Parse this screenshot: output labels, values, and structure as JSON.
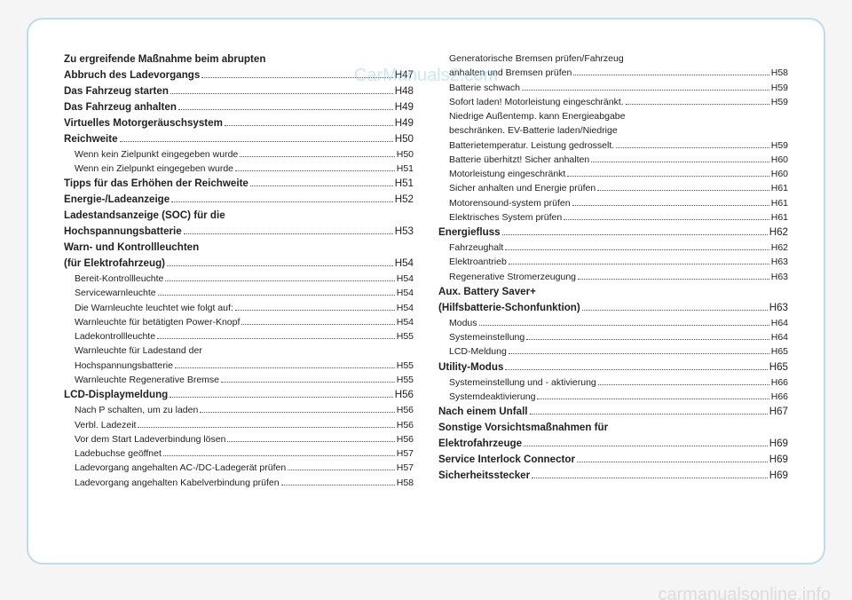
{
  "watermark_top": "CarManuals2.com",
  "watermark_bottom": "carmanualsonline.info",
  "left_column": [
    {
      "label": "Zu ergreifende Maßnahme beim abrupten",
      "page": "",
      "bold": true,
      "indent": false,
      "nodots": true
    },
    {
      "label": "Abbruch des Ladevorgangs",
      "page": "H47",
      "bold": true,
      "indent": false
    },
    {
      "label": "Das Fahrzeug starten",
      "page": "H48",
      "bold": true,
      "indent": false
    },
    {
      "label": "Das Fahrzeug anhalten",
      "page": "H49",
      "bold": true,
      "indent": false
    },
    {
      "label": "Virtuelles Motorgeräuschsystem",
      "page": "H49",
      "bold": true,
      "indent": false
    },
    {
      "label": "Reichweite",
      "page": "H50",
      "bold": true,
      "indent": false
    },
    {
      "label": "Wenn kein Zielpunkt eingegeben wurde",
      "page": "H50",
      "bold": false,
      "indent": true
    },
    {
      "label": "Wenn ein Zielpunkt eingegeben wurde",
      "page": "H51",
      "bold": false,
      "indent": true
    },
    {
      "label": "Tipps für das Erhöhen der Reichweite",
      "page": "H51",
      "bold": true,
      "indent": false
    },
    {
      "label": "Energie-/Ladeanzeige",
      "page": "H52",
      "bold": true,
      "indent": false
    },
    {
      "label": "Ladestandsanzeige (SOC) für die",
      "page": "",
      "bold": true,
      "indent": false,
      "nodots": true
    },
    {
      "label": "Hochspannungsbatterie",
      "page": "H53",
      "bold": true,
      "indent": false
    },
    {
      "label": "Warn- und Kontrollleuchten",
      "page": "",
      "bold": true,
      "indent": false,
      "nodots": true
    },
    {
      "label": "(für Elektrofahrzeug)",
      "page": "H54",
      "bold": true,
      "indent": false
    },
    {
      "label": "Bereit-Kontrollleuchte",
      "page": "H54",
      "bold": false,
      "indent": true
    },
    {
      "label": "Servicewarnleuchte",
      "page": "H54",
      "bold": false,
      "indent": true
    },
    {
      "label": "Die Warnleuchte leuchtet wie folgt auf:",
      "page": "H54",
      "bold": false,
      "indent": true
    },
    {
      "label": "Warnleuchte für betätigten Power-Knopf",
      "page": "H54",
      "bold": false,
      "indent": true
    },
    {
      "label": "Ladekontrollleuchte",
      "page": "H55",
      "bold": false,
      "indent": true
    },
    {
      "label": "Warnleuchte für Ladestand der",
      "page": "",
      "bold": false,
      "indent": true,
      "nodots": true
    },
    {
      "label": "Hochspannungsbatterie",
      "page": "H55",
      "bold": false,
      "indent": true
    },
    {
      "label": "Warnleuchte Regenerative Bremse",
      "page": "H55",
      "bold": false,
      "indent": true
    },
    {
      "label": "LCD-Displaymeldung",
      "page": "H56",
      "bold": true,
      "indent": false
    },
    {
      "label": "Nach P schalten, um zu laden",
      "page": "H56",
      "bold": false,
      "indent": true
    },
    {
      "label": "Verbl. Ladezeit",
      "page": "H56",
      "bold": false,
      "indent": true
    },
    {
      "label": "Vor dem Start Ladeverbindung lösen",
      "page": "H56",
      "bold": false,
      "indent": true
    },
    {
      "label": "Ladebuchse geöffnet",
      "page": "H57",
      "bold": false,
      "indent": true
    },
    {
      "label": "Ladevorgang angehalten AC-/DC-Ladegerät prüfen",
      "page": "H57",
      "bold": false,
      "indent": true
    },
    {
      "label": "Ladevorgang angehalten Kabelverbindung prüfen",
      "page": "H58",
      "bold": false,
      "indent": true
    }
  ],
  "right_column": [
    {
      "label": "Generatorische Bremsen prüfen/Fahrzeug",
      "page": "",
      "bold": false,
      "indent": true,
      "nodots": true
    },
    {
      "label": "anhalten und Bremsen prüfen",
      "page": "H58",
      "bold": false,
      "indent": true
    },
    {
      "label": "Batterie schwach",
      "page": "H59",
      "bold": false,
      "indent": true
    },
    {
      "label": "Sofort laden! Motorleistung eingeschränkt.",
      "page": "H59",
      "bold": false,
      "indent": true
    },
    {
      "label": "Niedrige Außentemp. kann Energieabgabe",
      "page": "",
      "bold": false,
      "indent": true,
      "nodots": true
    },
    {
      "label": "beschränken. EV-Batterie laden/Niedrige",
      "page": "",
      "bold": false,
      "indent": true,
      "nodots": true
    },
    {
      "label": "Batterietemperatur. Leistung gedrosselt.",
      "page": "H59",
      "bold": false,
      "indent": true
    },
    {
      "label": "Batterie überhitzt! Sicher anhalten",
      "page": "H60",
      "bold": false,
      "indent": true
    },
    {
      "label": "Motorleistung eingeschränkt",
      "page": "H60",
      "bold": false,
      "indent": true
    },
    {
      "label": "Sicher anhalten und Energie prüfen",
      "page": "H61",
      "bold": false,
      "indent": true
    },
    {
      "label": "Motorensound-system prüfen",
      "page": "H61",
      "bold": false,
      "indent": true
    },
    {
      "label": "Elektrisches System prüfen",
      "page": "H61",
      "bold": false,
      "indent": true
    },
    {
      "label": "Energiefluss",
      "page": "H62",
      "bold": true,
      "indent": false
    },
    {
      "label": "Fahrzeughalt",
      "page": "H62",
      "bold": false,
      "indent": true
    },
    {
      "label": "Elektroantrieb",
      "page": "H63",
      "bold": false,
      "indent": true
    },
    {
      "label": "Regenerative Stromerzeugung",
      "page": "H63",
      "bold": false,
      "indent": true
    },
    {
      "label": "Aux. Battery Saver+",
      "page": "",
      "bold": true,
      "indent": false,
      "nodots": true
    },
    {
      "label": "(Hilfsbatterie-Schonfunktion)",
      "page": "H63",
      "bold": true,
      "indent": false
    },
    {
      "label": "Modus",
      "page": "H64",
      "bold": false,
      "indent": true
    },
    {
      "label": "Systemeinstellung",
      "page": "H64",
      "bold": false,
      "indent": true
    },
    {
      "label": "LCD-Meldung",
      "page": "H65",
      "bold": false,
      "indent": true
    },
    {
      "label": "Utility-Modus",
      "page": "H65",
      "bold": true,
      "indent": false
    },
    {
      "label": "Systemeinstellung und - aktivierung",
      "page": "H66",
      "bold": false,
      "indent": true
    },
    {
      "label": "Systemdeaktivierung",
      "page": "H66",
      "bold": false,
      "indent": true
    },
    {
      "label": "Nach einem Unfall",
      "page": "H67",
      "bold": true,
      "indent": false
    },
    {
      "label": "Sonstige Vorsichtsmaßnahmen für",
      "page": "",
      "bold": true,
      "indent": false,
      "nodots": true
    },
    {
      "label": "Elektrofahrzeuge",
      "page": "H69",
      "bold": true,
      "indent": false
    },
    {
      "label": "Service Interlock Connector",
      "page": "H69",
      "bold": true,
      "indent": false
    },
    {
      "label": "Sicherheitsstecker",
      "page": "H69",
      "bold": true,
      "indent": false
    }
  ]
}
